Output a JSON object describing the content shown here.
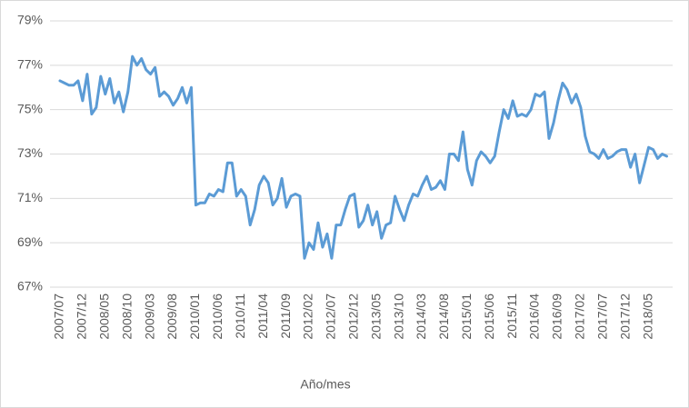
{
  "chart_data": {
    "type": "line",
    "x_label": "Año/mes",
    "categories": [
      "2007/07",
      null,
      null,
      null,
      null,
      "2007/12",
      null,
      null,
      null,
      null,
      "2008/05",
      null,
      null,
      null,
      null,
      "2008/10",
      null,
      null,
      null,
      null,
      "2009/03",
      null,
      null,
      null,
      null,
      "2009/08",
      null,
      null,
      null,
      null,
      "2010/01",
      null,
      null,
      null,
      null,
      "2010/06",
      null,
      null,
      null,
      null,
      "2010/11",
      null,
      null,
      null,
      null,
      "2011/04",
      null,
      null,
      null,
      null,
      "2011/09",
      null,
      null,
      null,
      null,
      "2012/02",
      null,
      null,
      null,
      null,
      "2012/07",
      null,
      null,
      null,
      null,
      "2012/12",
      null,
      null,
      null,
      null,
      "2013/05",
      null,
      null,
      null,
      null,
      "2013/10",
      null,
      null,
      null,
      null,
      "2014/03",
      null,
      null,
      null,
      null,
      "2014/08",
      null,
      null,
      null,
      null,
      "2015/01",
      null,
      null,
      null,
      null,
      "2015/06",
      null,
      null,
      null,
      null,
      "2015/11",
      null,
      null,
      null,
      null,
      "2016/04",
      null,
      null,
      null,
      null,
      "2016/09",
      null,
      null,
      null,
      null,
      "2017/02",
      null,
      null,
      null,
      null,
      "2017/07",
      null,
      null,
      null,
      null,
      "2017/12",
      null,
      null,
      null,
      null,
      "2018/05",
      null,
      null,
      null,
      null
    ],
    "values": [
      76.3,
      76.2,
      76.1,
      76.1,
      76.3,
      75.4,
      76.6,
      74.8,
      75.1,
      76.5,
      75.7,
      76.4,
      75.3,
      75.8,
      74.9,
      75.8,
      77.4,
      77.0,
      77.3,
      76.8,
      76.6,
      76.9,
      75.6,
      75.8,
      75.6,
      75.2,
      75.5,
      76.0,
      75.3,
      76.0,
      70.7,
      70.8,
      70.8,
      71.2,
      71.1,
      71.4,
      71.3,
      72.6,
      72.6,
      71.1,
      71.4,
      71.1,
      69.8,
      70.5,
      71.6,
      72.0,
      71.7,
      70.7,
      71.0,
      71.9,
      70.6,
      71.1,
      71.2,
      71.1,
      68.3,
      69.0,
      68.7,
      69.9,
      68.8,
      69.4,
      68.3,
      69.8,
      69.8,
      70.5,
      71.1,
      71.2,
      69.7,
      70.0,
      70.7,
      69.8,
      70.4,
      69.2,
      69.8,
      69.9,
      71.1,
      70.5,
      70.0,
      70.7,
      71.2,
      71.1,
      71.6,
      72.0,
      71.4,
      71.5,
      71.8,
      71.4,
      73.0,
      73.0,
      72.7,
      74.0,
      72.3,
      71.6,
      72.7,
      73.1,
      72.9,
      72.6,
      72.9,
      74.0,
      75.0,
      74.6,
      75.4,
      74.7,
      74.8,
      74.7,
      75.0,
      75.7,
      75.6,
      75.8,
      73.7,
      74.4,
      75.4,
      76.2,
      75.9,
      75.3,
      75.7,
      75.1,
      73.8,
      73.1,
      73.0,
      72.8,
      73.2,
      72.8,
      72.9,
      73.1,
      73.2,
      73.2,
      72.4,
      73.0,
      71.7,
      72.5,
      73.3,
      73.2,
      72.8,
      73.0,
      72.9
    ],
    "color": "#5b9bd5",
    "ylim": [
      67,
      79
    ],
    "yticks": [
      {
        "value": 67,
        "label": "67%"
      },
      {
        "value": 69,
        "label": "69%"
      },
      {
        "value": 71,
        "label": "71%"
      },
      {
        "value": 73,
        "label": "73%"
      },
      {
        "value": 75,
        "label": "75%"
      },
      {
        "value": 77,
        "label": "77%"
      },
      {
        "value": 79,
        "label": "79%"
      }
    ],
    "grid": true
  }
}
